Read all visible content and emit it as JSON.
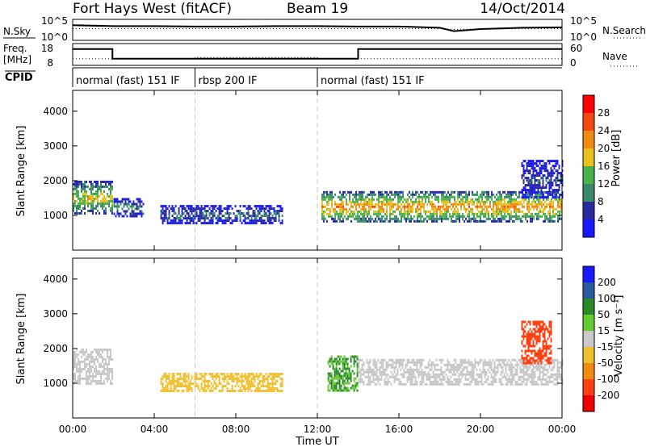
{
  "header": {
    "station": "Fort Hays West (fitACF)",
    "beam": "Beam 19",
    "date": "14/Oct/2014"
  },
  "noise_panel": {
    "left_label": "N.Sky",
    "left_ticks": [
      "10^5",
      "10^0"
    ],
    "right_label": "N.Search",
    "right_ticks": [
      "10^5",
      "10^0"
    ]
  },
  "freq_panel": {
    "left_label_top": "Freq.",
    "left_label_bottom": "[MHz]",
    "left_ticks": [
      "18",
      "8"
    ],
    "right_label": "Nave",
    "right_ticks": [
      "60",
      "0"
    ]
  },
  "cpid_panel": {
    "label": "CPID",
    "segments": [
      {
        "label": "normal (fast) 151 IF",
        "start_hour": 0,
        "end_hour": 6
      },
      {
        "label": "rbsp 200 IF",
        "start_hour": 6,
        "end_hour": 12
      },
      {
        "label": "normal (fast) 151 IF",
        "start_hour": 12,
        "end_hour": 24
      }
    ]
  },
  "axes": {
    "ylabel": "Slant Range [km]",
    "xlabel": "Time UT",
    "y_ticks": [
      "1000",
      "2000",
      "3000",
      "4000"
    ],
    "x_ticks": [
      "00:00",
      "04:00",
      "08:00",
      "12:00",
      "16:00",
      "20:00",
      "00:00"
    ]
  },
  "colorbars": {
    "power": {
      "label": "Power [dB]",
      "ticks": [
        "4",
        "8",
        "12",
        "16",
        "20",
        "24",
        "28"
      ],
      "colors": [
        "#1a1aff",
        "#2a2aa0",
        "#3a8a6a",
        "#4ab24a",
        "#e8c020",
        "#f08a10",
        "#f04a10",
        "#ff0000"
      ]
    },
    "velocity": {
      "label": "Velocity [m s⁻¹]",
      "ticks": [
        "200",
        "100",
        "50",
        "15",
        "-15",
        "-50",
        "-100",
        "-200"
      ],
      "colors": [
        "#1a1aff",
        "#2a5aa0",
        "#2a8a2a",
        "#66cc33",
        "#c8c8c8",
        "#f0c030",
        "#f08a10",
        "#ff4010",
        "#ee0000"
      ]
    }
  },
  "chart_data": [
    {
      "type": "line",
      "title": "N.Sky / N.Search",
      "x_hours": [
        0,
        2,
        4,
        6,
        8,
        10,
        12,
        14,
        16,
        18,
        18.7,
        20,
        22,
        24
      ],
      "series": [
        {
          "name": "N.Sky",
          "values_log10": [
            3.6,
            3.4,
            3.4,
            3.3,
            3.3,
            3.4,
            3.4,
            3.3,
            3.3,
            3.0,
            2.2,
            2.7,
            3.0,
            3.1
          ]
        },
        {
          "name": "N.Search",
          "values_log10": [
            2.8,
            2.8,
            2.8,
            2.8,
            2.8,
            2.8,
            2.8,
            2.8,
            2.8,
            2.8,
            2.6,
            2.7,
            2.8,
            2.8
          ]
        }
      ],
      "ylim_log10": [
        0,
        5
      ]
    },
    {
      "type": "line",
      "title": "Freq / Nave",
      "x_hours": [
        0,
        1.95,
        1.95,
        6,
        6,
        8,
        10,
        12,
        12,
        14,
        14,
        24
      ],
      "series": [
        {
          "name": "Freq.",
          "unit": "MHz",
          "values": [
            16,
            16,
            11,
            11,
            11,
            11,
            11,
            11,
            11,
            11,
            16,
            16
          ]
        },
        {
          "name": "Nave",
          "values": [
            18,
            18,
            18,
            18,
            22,
            22,
            22,
            22,
            18,
            18,
            18,
            18
          ]
        }
      ],
      "ylim_freq": [
        8,
        18
      ],
      "ylim_nave": [
        0,
        60
      ]
    },
    {
      "type": "heatmap",
      "title": "Power",
      "xlabel": "Time UT",
      "ylabel": "Slant Range [km]",
      "xlim_hours": [
        0,
        24
      ],
      "ylim_km": [
        0,
        4600
      ],
      "echo_regions": [
        {
          "start_hour": 0.0,
          "end_hour": 1.95,
          "range_km": [
            1050,
            2000
          ],
          "power_db": 18
        },
        {
          "start_hour": 2.0,
          "end_hour": 3.5,
          "range_km": [
            1000,
            1500
          ],
          "power_db": 12
        },
        {
          "start_hour": 4.3,
          "end_hour": 10.3,
          "range_km": [
            800,
            1300
          ],
          "power_db": 10
        },
        {
          "start_hour": 12.2,
          "end_hour": 24.0,
          "range_km": [
            850,
            1700
          ],
          "power_db": 22
        },
        {
          "start_hour": 22.0,
          "end_hour": 24.0,
          "range_km": [
            1500,
            2600
          ],
          "power_db": 8
        }
      ]
    },
    {
      "type": "heatmap",
      "title": "Velocity",
      "xlabel": "Time UT",
      "ylabel": "Slant Range [km]",
      "xlim_hours": [
        0,
        24
      ],
      "ylim_km": [
        0,
        4600
      ],
      "echo_regions": [
        {
          "start_hour": 0.0,
          "end_hour": 1.95,
          "range_km": [
            1000,
            2000
          ],
          "velocity": 0
        },
        {
          "start_hour": 4.3,
          "end_hour": 10.3,
          "range_km": [
            800,
            1300
          ],
          "velocity": -30
        },
        {
          "start_hour": 12.5,
          "end_hour": 14.0,
          "range_km": [
            800,
            1800
          ],
          "velocity": 30
        },
        {
          "start_hour": 14.0,
          "end_hour": 24.0,
          "range_km": [
            1000,
            1700
          ],
          "velocity": 0
        },
        {
          "start_hour": 22.0,
          "end_hour": 23.5,
          "range_km": [
            1600,
            2800
          ],
          "velocity": -150
        }
      ]
    }
  ]
}
